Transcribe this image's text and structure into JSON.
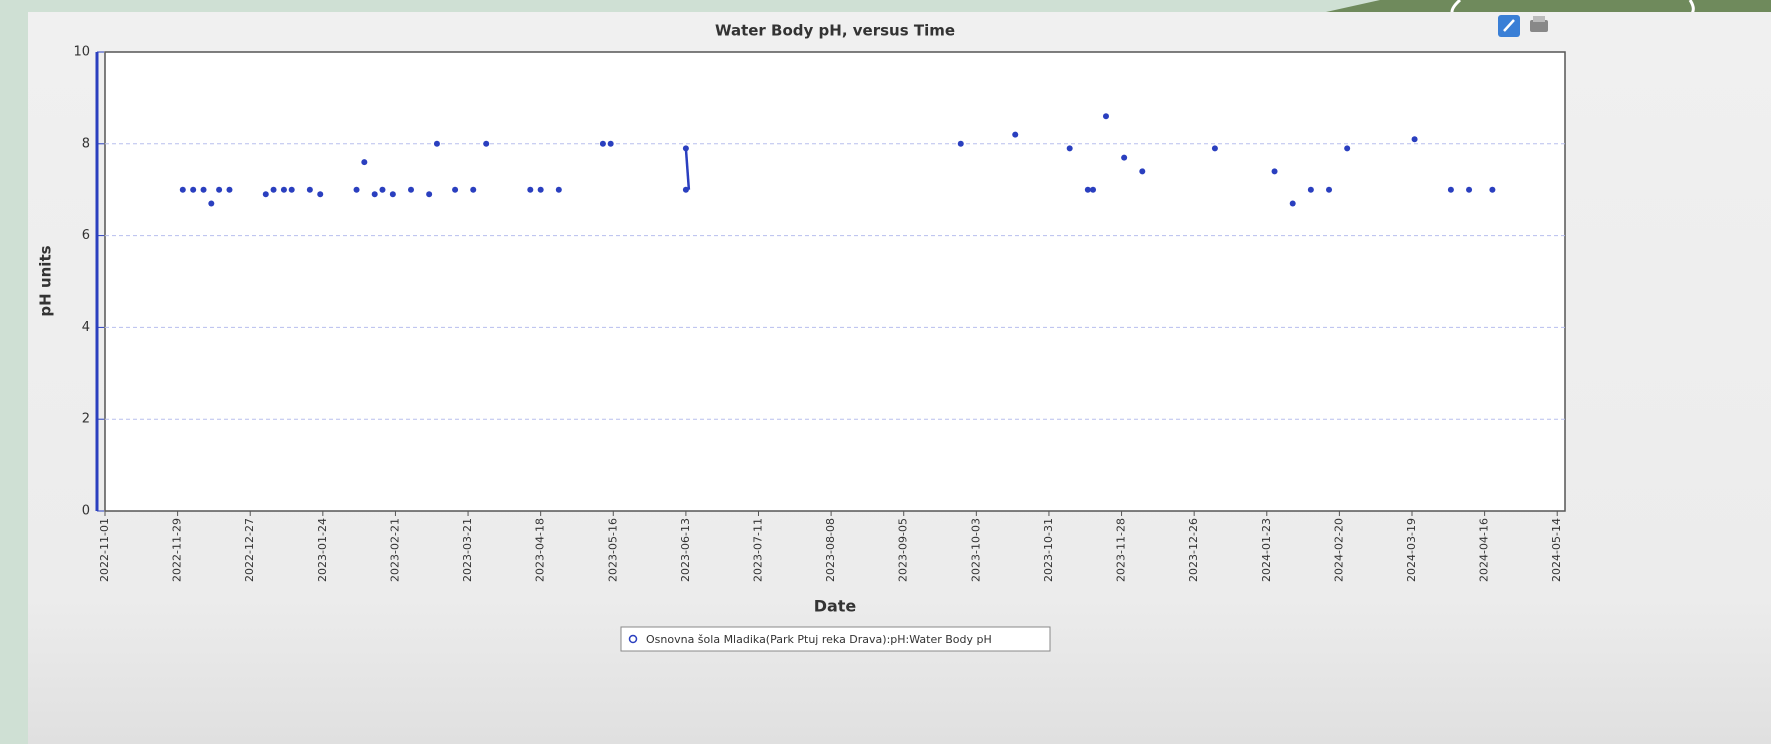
{
  "chart_data": {
    "type": "scatter",
    "title": "Water Body pH, versus Time",
    "x_label": "Date",
    "y_label": "pH units",
    "x": [
      "2022-12-01",
      "2022-12-05",
      "2022-12-09",
      "2022-12-12",
      "2022-12-15",
      "2022-12-19",
      "2023-01-02",
      "2023-01-05",
      "2023-01-09",
      "2023-01-12",
      "2023-01-19",
      "2023-01-23",
      "2023-02-06",
      "2023-02-09",
      "2023-02-13",
      "2023-02-16",
      "2023-02-20",
      "2023-02-27",
      "2023-03-06",
      "2023-03-09",
      "2023-03-16",
      "2023-03-23",
      "2023-03-28",
      "2023-04-14",
      "2023-04-18",
      "2023-04-25",
      "2023-05-12",
      "2023-05-15",
      "2023-06-13",
      "2023-06-13",
      "2023-09-27",
      "2023-10-18",
      "2023-11-08",
      "2023-11-15",
      "2023-11-17",
      "2023-11-22",
      "2023-11-29",
      "2023-12-06",
      "2024-01-03",
      "2024-01-26",
      "2024-02-02",
      "2024-02-09",
      "2024-02-16",
      "2024-02-23",
      "2024-03-20",
      "2024-04-03",
      "2024-04-10",
      "2024-04-19"
    ],
    "series": [
      {
        "name": "Osnovna šola Mladika(Park Ptuj reka Drava):pH:Water Body pH",
        "color": "#2a3fbf",
        "values": [
          7,
          7,
          7,
          6.7,
          7,
          7,
          6.9,
          7,
          7,
          7,
          7,
          6.9,
          7,
          7.6,
          6.9,
          7,
          6.9,
          7,
          6.9,
          8,
          7,
          7,
          8,
          7,
          7,
          7,
          8,
          8,
          7.9,
          7,
          8,
          8.2,
          7.9,
          7,
          7,
          8.6,
          7.7,
          7.4,
          7.9,
          7.4,
          6.7,
          7,
          7,
          7.9,
          8.1,
          7,
          7,
          7
        ]
      }
    ],
    "xlim": [
      "2022-11-01",
      "2024-05-17"
    ],
    "xticks": [
      "2022-11-01",
      "2022-11-29",
      "2022-12-27",
      "2023-01-24",
      "2023-02-21",
      "2023-03-21",
      "2023-04-18",
      "2023-05-16",
      "2023-06-13",
      "2023-07-11",
      "2023-08-08",
      "2023-09-05",
      "2023-10-03",
      "2023-10-31",
      "2023-11-28",
      "2023-12-26",
      "2024-01-23",
      "2024-02-20",
      "2024-03-19",
      "2024-04-16",
      "2024-05-14"
    ],
    "ylim": [
      0,
      10
    ],
    "yticks": [
      0,
      2,
      4,
      6,
      8,
      10
    ],
    "grid": true
  }
}
